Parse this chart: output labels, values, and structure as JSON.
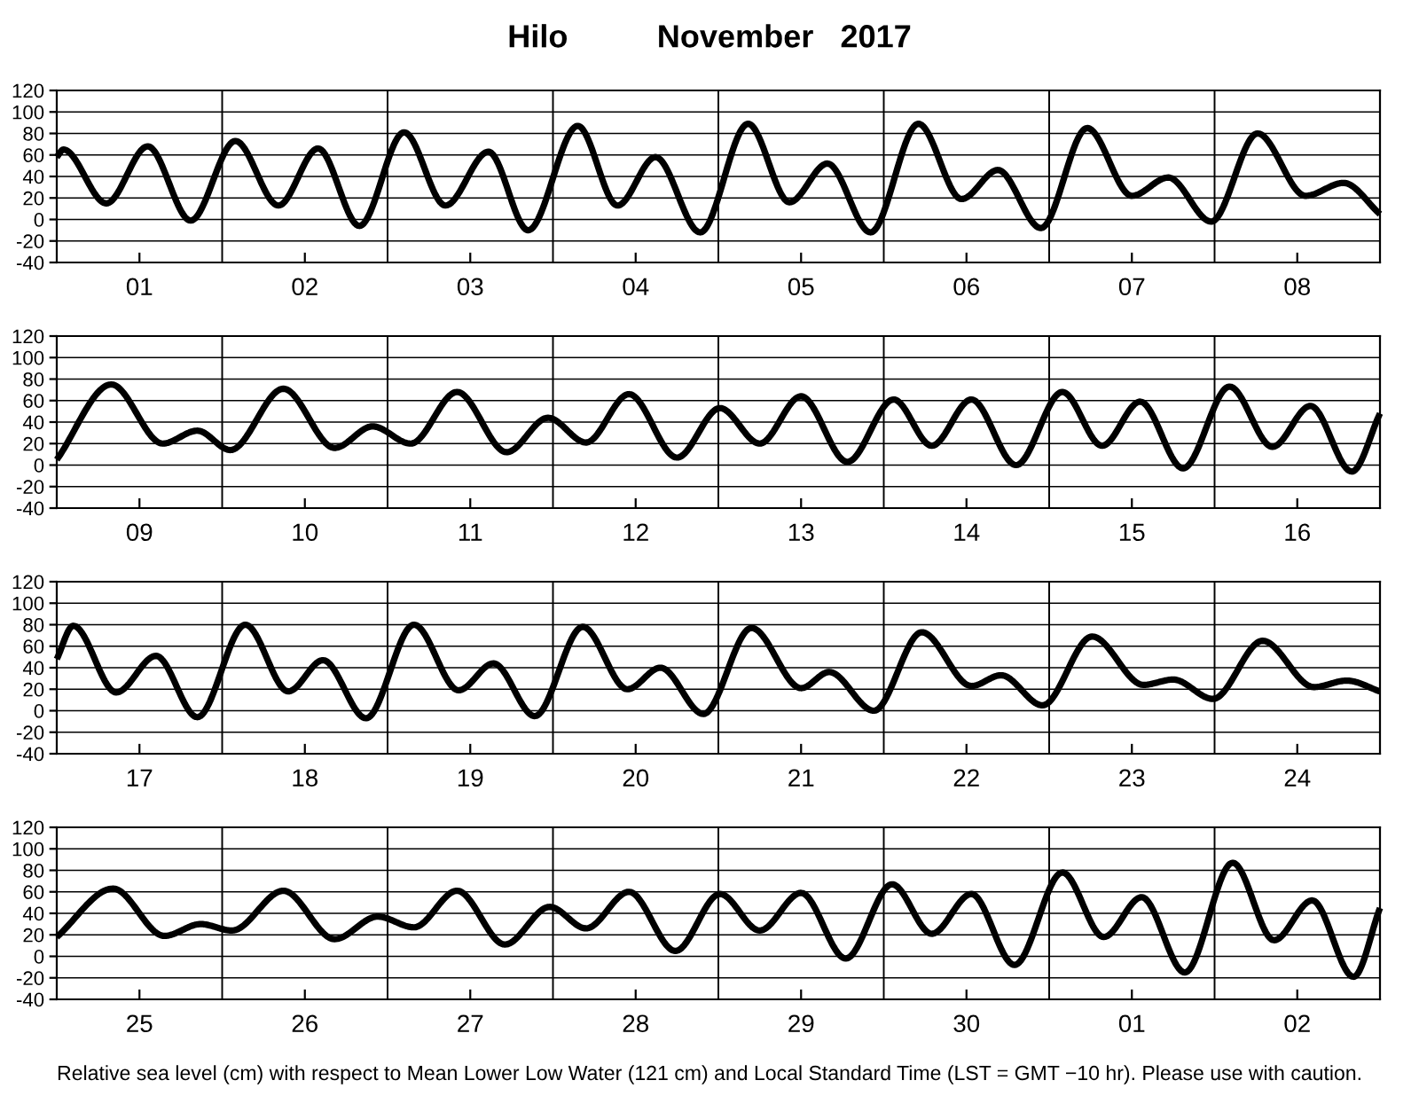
{
  "chart_data": [
    {
      "type": "line",
      "title": "Hilo          November   2017",
      "x": [
        "2017-11-01T00:00",
        "2017-11-01T00:58",
        "2017-11-01T07:12",
        "2017-11-01T13:12",
        "2017-11-01T19:26",
        "2017-11-02T01:55",
        "2017-11-02T08:10",
        "2017-11-02T13:55",
        "2017-11-02T19:55",
        "2017-11-03T02:24",
        "2017-11-03T08:24",
        "2017-11-03T14:38",
        "2017-11-03T20:24",
        "2017-11-04T03:36",
        "2017-11-04T09:22",
        "2017-11-04T14:53",
        "2017-11-04T21:22",
        "2017-11-05T04:19",
        "2017-11-05T10:19",
        "2017-11-05T15:50",
        "2017-11-05T22:05",
        "2017-11-06T05:02",
        "2017-11-06T11:17",
        "2017-11-06T16:34",
        "2017-11-06T22:48",
        "2017-11-07T05:31",
        "2017-11-07T12:00",
        "2017-11-07T17:17",
        "2017-11-07T23:31",
        "2017-11-08T06:14",
        "2017-11-08T13:12",
        "2017-11-08T18:43",
        "2017-11-09T00:00"
      ],
      "series": [
        {
          "color": "#000000",
          "values": [
            58,
            65,
            15,
            68,
            -1,
            73,
            13,
            66,
            -6,
            81,
            13,
            63,
            -10,
            87,
            13,
            58,
            -12,
            89,
            16,
            52,
            -12,
            89,
            19,
            46,
            -8,
            85,
            22,
            39,
            -2,
            80,
            22,
            34,
            5
          ]
        }
      ],
      "xlim": [
        "2017-11-01T00:00",
        "2017-11-09T00:00"
      ],
      "xticks": [
        {
          "value": "2017-11-01T12:00",
          "label": "01"
        },
        {
          "value": "2017-11-02T12:00",
          "label": "02"
        },
        {
          "value": "2017-11-03T12:00",
          "label": "03"
        },
        {
          "value": "2017-11-04T12:00",
          "label": "04"
        },
        {
          "value": "2017-11-05T12:00",
          "label": "05"
        },
        {
          "value": "2017-11-06T12:00",
          "label": "06"
        },
        {
          "value": "2017-11-07T12:00",
          "label": "07"
        },
        {
          "value": "2017-11-08T12:00",
          "label": "08"
        }
      ],
      "ylim": [
        -40,
        120
      ],
      "yticks": [
        -40,
        -20,
        0,
        20,
        40,
        60,
        80,
        100,
        120
      ],
      "grid": "y",
      "marker": "none",
      "line_style": "solid",
      "legend": false,
      "ref_lines": [
        {
          "axis": "x",
          "value": "2017-11-02T00:00",
          "color": "#000000"
        },
        {
          "axis": "x",
          "value": "2017-11-03T00:00",
          "color": "#000000"
        },
        {
          "axis": "x",
          "value": "2017-11-04T00:00",
          "color": "#000000"
        },
        {
          "axis": "x",
          "value": "2017-11-05T00:00",
          "color": "#000000"
        },
        {
          "axis": "x",
          "value": "2017-11-06T00:00",
          "color": "#000000"
        },
        {
          "axis": "x",
          "value": "2017-11-07T00:00",
          "color": "#000000"
        },
        {
          "axis": "x",
          "value": "2017-11-08T00:00",
          "color": "#000000"
        }
      ]
    },
    {
      "type": "line",
      "x": [
        "2017-11-09T00:00",
        "2017-11-09T07:55",
        "2017-11-09T15:22",
        "2017-11-09T20:24",
        "2017-11-10T01:12",
        "2017-11-10T08:53",
        "2017-11-10T16:19",
        "2017-11-10T21:50",
        "2017-11-11T03:22",
        "2017-11-11T10:05",
        "2017-11-11T17:17",
        "2017-11-11T23:17",
        "2017-11-12T04:48",
        "2017-11-12T11:02",
        "2017-11-12T18:00",
        "2017-11-13T00:14",
        "2017-11-13T06:00",
        "2017-11-13T12:00",
        "2017-11-13T18:43",
        "2017-11-14T01:26",
        "2017-11-14T06:58",
        "2017-11-14T12:43",
        "2017-11-14T19:12",
        "2017-11-15T01:55",
        "2017-11-15T07:41",
        "2017-11-15T13:12",
        "2017-11-15T19:26",
        "2017-11-16T02:10",
        "2017-11-16T08:24",
        "2017-11-16T13:55",
        "2017-11-16T19:55",
        "2017-11-17T00:00"
      ],
      "series": [
        {
          "color": "#000000",
          "values": [
            5,
            75,
            20,
            32,
            14,
            71,
            16,
            36,
            20,
            68,
            12,
            44,
            21,
            66,
            7,
            53,
            20,
            64,
            3,
            61,
            18,
            61,
            0,
            68,
            18,
            59,
            -3,
            73,
            17,
            55,
            -6,
            48
          ]
        }
      ],
      "xlim": [
        "2017-11-09T00:00",
        "2017-11-17T00:00"
      ],
      "xticks": [
        {
          "value": "2017-11-09T12:00",
          "label": "09"
        },
        {
          "value": "2017-11-10T12:00",
          "label": "10"
        },
        {
          "value": "2017-11-11T12:00",
          "label": "11"
        },
        {
          "value": "2017-11-12T12:00",
          "label": "12"
        },
        {
          "value": "2017-11-13T12:00",
          "label": "13"
        },
        {
          "value": "2017-11-14T12:00",
          "label": "14"
        },
        {
          "value": "2017-11-15T12:00",
          "label": "15"
        },
        {
          "value": "2017-11-16T12:00",
          "label": "16"
        }
      ],
      "ylim": [
        -40,
        120
      ],
      "yticks": [
        -40,
        -20,
        0,
        20,
        40,
        60,
        80,
        100,
        120
      ],
      "grid": "y",
      "marker": "none",
      "line_style": "solid",
      "legend": false,
      "ref_lines": [
        {
          "axis": "x",
          "value": "2017-11-10T00:00",
          "color": "#000000"
        },
        {
          "axis": "x",
          "value": "2017-11-11T00:00",
          "color": "#000000"
        },
        {
          "axis": "x",
          "value": "2017-11-12T00:00",
          "color": "#000000"
        },
        {
          "axis": "x",
          "value": "2017-11-13T00:00",
          "color": "#000000"
        },
        {
          "axis": "x",
          "value": "2017-11-14T00:00",
          "color": "#000000"
        },
        {
          "axis": "x",
          "value": "2017-11-15T00:00",
          "color": "#000000"
        },
        {
          "axis": "x",
          "value": "2017-11-16T00:00",
          "color": "#000000"
        }
      ]
    },
    {
      "type": "line",
      "x": [
        "2017-11-17T00:00",
        "2017-11-17T02:24",
        "2017-11-17T08:38",
        "2017-11-17T14:24",
        "2017-11-17T20:24",
        "2017-11-18T03:22",
        "2017-11-18T09:36",
        "2017-11-18T14:38",
        "2017-11-18T20:53",
        "2017-11-19T03:50",
        "2017-11-19T10:19",
        "2017-11-19T15:22",
        "2017-11-19T21:22",
        "2017-11-20T04:19",
        "2017-11-20T10:48",
        "2017-11-20T15:36",
        "2017-11-20T21:50",
        "2017-11-21T04:48",
        "2017-11-21T12:00",
        "2017-11-21T16:05",
        "2017-11-21T22:34",
        "2017-11-22T05:31",
        "2017-11-22T12:43",
        "2017-11-22T17:02",
        "2017-11-22T23:02",
        "2017-11-23T06:14",
        "2017-11-23T13:41",
        "2017-11-23T18:00",
        "2017-11-23T23:46",
        "2017-11-24T06:58",
        "2017-11-24T14:24",
        "2017-11-24T19:12",
        "2017-11-25T00:00"
      ],
      "series": [
        {
          "color": "#000000",
          "values": [
            48,
            79,
            17,
            51,
            -6,
            80,
            18,
            47,
            -7,
            80,
            19,
            44,
            -5,
            78,
            20,
            40,
            -3,
            77,
            21,
            36,
            0,
            73,
            23,
            33,
            5,
            69,
            24,
            29,
            11,
            65,
            22,
            28,
            18
          ]
        }
      ],
      "xlim": [
        "2017-11-17T00:00",
        "2017-11-25T00:00"
      ],
      "xticks": [
        {
          "value": "2017-11-17T12:00",
          "label": "17"
        },
        {
          "value": "2017-11-18T12:00",
          "label": "18"
        },
        {
          "value": "2017-11-19T12:00",
          "label": "19"
        },
        {
          "value": "2017-11-20T12:00",
          "label": "20"
        },
        {
          "value": "2017-11-21T12:00",
          "label": "21"
        },
        {
          "value": "2017-11-22T12:00",
          "label": "22"
        },
        {
          "value": "2017-11-23T12:00",
          "label": "23"
        },
        {
          "value": "2017-11-24T12:00",
          "label": "24"
        }
      ],
      "ylim": [
        -40,
        120
      ],
      "yticks": [
        -40,
        -20,
        0,
        20,
        40,
        60,
        80,
        100,
        120
      ],
      "grid": "y",
      "marker": "none",
      "line_style": "solid",
      "legend": false,
      "ref_lines": [
        {
          "axis": "x",
          "value": "2017-11-18T00:00",
          "color": "#000000"
        },
        {
          "axis": "x",
          "value": "2017-11-19T00:00",
          "color": "#000000"
        },
        {
          "axis": "x",
          "value": "2017-11-20T00:00",
          "color": "#000000"
        },
        {
          "axis": "x",
          "value": "2017-11-21T00:00",
          "color": "#000000"
        },
        {
          "axis": "x",
          "value": "2017-11-22T00:00",
          "color": "#000000"
        },
        {
          "axis": "x",
          "value": "2017-11-23T00:00",
          "color": "#000000"
        },
        {
          "axis": "x",
          "value": "2017-11-24T00:00",
          "color": "#000000"
        }
      ]
    },
    {
      "type": "line",
      "x": [
        "2017-11-25T00:00",
        "2017-11-25T08:10",
        "2017-11-25T15:36",
        "2017-11-25T20:53",
        "2017-11-26T01:26",
        "2017-11-26T08:53",
        "2017-11-26T16:19",
        "2017-11-26T22:34",
        "2017-11-27T03:50",
        "2017-11-27T10:05",
        "2017-11-27T17:02",
        "2017-11-27T23:31",
        "2017-11-28T04:48",
        "2017-11-28T11:02",
        "2017-11-28T17:46",
        "2017-11-29T00:14",
        "2017-11-29T06:00",
        "2017-11-29T12:00",
        "2017-11-29T18:29",
        "2017-11-30T01:12",
        "2017-11-30T06:58",
        "2017-11-30T12:43",
        "2017-11-30T18:58",
        "2017-12-01T01:55",
        "2017-12-01T07:55",
        "2017-12-01T13:26",
        "2017-12-01T19:41",
        "2017-12-02T02:38",
        "2017-12-02T08:38",
        "2017-12-02T14:10",
        "2017-12-02T20:10",
        "2017-12-03T00:00"
      ],
      "series": [
        {
          "color": "#000000",
          "values": [
            18,
            63,
            19,
            30,
            24,
            61,
            16,
            37,
            27,
            61,
            11,
            46,
            26,
            60,
            5,
            58,
            24,
            59,
            -2,
            67,
            21,
            58,
            -8,
            78,
            18,
            55,
            -15,
            87,
            15,
            52,
            -19,
            45
          ]
        }
      ],
      "xlim": [
        "2017-11-25T00:00",
        "2017-12-03T00:00"
      ],
      "xticks": [
        {
          "value": "2017-11-25T12:00",
          "label": "25"
        },
        {
          "value": "2017-11-26T12:00",
          "label": "26"
        },
        {
          "value": "2017-11-27T12:00",
          "label": "27"
        },
        {
          "value": "2017-11-28T12:00",
          "label": "28"
        },
        {
          "value": "2017-11-29T12:00",
          "label": "29"
        },
        {
          "value": "2017-11-30T12:00",
          "label": "30"
        },
        {
          "value": "2017-12-01T12:00",
          "label": "01"
        },
        {
          "value": "2017-12-02T12:00",
          "label": "02"
        }
      ],
      "ylim": [
        -40,
        120
      ],
      "yticks": [
        -40,
        -20,
        0,
        20,
        40,
        60,
        80,
        100,
        120
      ],
      "grid": "y",
      "marker": "none",
      "line_style": "solid",
      "legend": false,
      "ref_lines": [
        {
          "axis": "x",
          "value": "2017-11-26T00:00",
          "color": "#000000"
        },
        {
          "axis": "x",
          "value": "2017-11-27T00:00",
          "color": "#000000"
        },
        {
          "axis": "x",
          "value": "2017-11-28T00:00",
          "color": "#000000"
        },
        {
          "axis": "x",
          "value": "2017-11-29T00:00",
          "color": "#000000"
        },
        {
          "axis": "x",
          "value": "2017-11-30T00:00",
          "color": "#000000"
        },
        {
          "axis": "x",
          "value": "2017-12-01T00:00",
          "color": "#000000"
        },
        {
          "axis": "x",
          "value": "2017-12-02T00:00",
          "color": "#000000"
        }
      ],
      "annotations": [
        "Relative sea level (cm) with respect to Mean Lower Low Water (121 cm) and Local Standard Time (LST = GMT −10 hr). Please use with caution."
      ]
    }
  ]
}
